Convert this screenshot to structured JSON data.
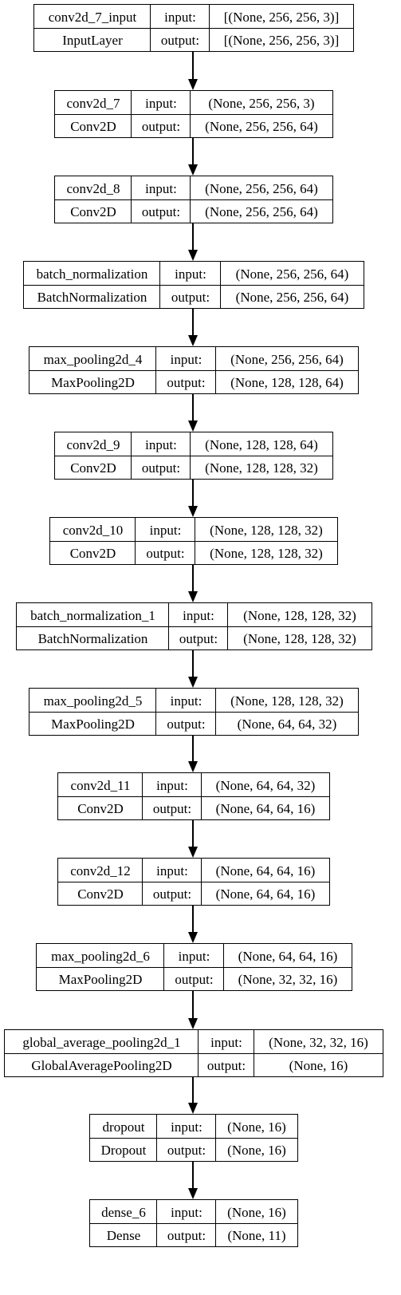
{
  "labels": {
    "input": "input:",
    "output": "output:"
  },
  "layers": [
    {
      "name": "conv2d_7_input",
      "type": "InputLayer",
      "input": "[(None, 256, 256, 3)]",
      "output": "[(None, 256, 256, 3)]"
    },
    {
      "name": "conv2d_7",
      "type": "Conv2D",
      "input": "(None, 256, 256, 3)",
      "output": "(None, 256, 256, 64)"
    },
    {
      "name": "conv2d_8",
      "type": "Conv2D",
      "input": "(None, 256, 256, 64)",
      "output": "(None, 256, 256, 64)"
    },
    {
      "name": "batch_normalization",
      "type": "BatchNormalization",
      "input": "(None, 256, 256, 64)",
      "output": "(None, 256, 256, 64)"
    },
    {
      "name": "max_pooling2d_4",
      "type": "MaxPooling2D",
      "input": "(None, 256, 256, 64)",
      "output": "(None, 128, 128, 64)"
    },
    {
      "name": "conv2d_9",
      "type": "Conv2D",
      "input": "(None, 128, 128, 64)",
      "output": "(None, 128, 128, 32)"
    },
    {
      "name": "conv2d_10",
      "type": "Conv2D",
      "input": "(None, 128, 128, 32)",
      "output": "(None, 128, 128, 32)"
    },
    {
      "name": "batch_normalization_1",
      "type": "BatchNormalization",
      "input": "(None, 128, 128, 32)",
      "output": "(None, 128, 128, 32)"
    },
    {
      "name": "max_pooling2d_5",
      "type": "MaxPooling2D",
      "input": "(None, 128, 128, 32)",
      "output": "(None, 64, 64, 32)"
    },
    {
      "name": "conv2d_11",
      "type": "Conv2D",
      "input": "(None, 64, 64, 32)",
      "output": "(None, 64, 64, 16)"
    },
    {
      "name": "conv2d_12",
      "type": "Conv2D",
      "input": "(None, 64, 64, 16)",
      "output": "(None, 64, 64, 16)"
    },
    {
      "name": "max_pooling2d_6",
      "type": "MaxPooling2D",
      "input": "(None, 64, 64, 16)",
      "output": "(None, 32, 32, 16)"
    },
    {
      "name": "global_average_pooling2d_1",
      "type": "GlobalAveragePooling2D",
      "input": "(None, 32, 32, 16)",
      "output": "(None, 16)"
    },
    {
      "name": "dropout",
      "type": "Dropout",
      "input": "(None, 16)",
      "output": "(None, 16)"
    },
    {
      "name": "dense_6",
      "type": "Dense",
      "input": "(None, 16)",
      "output": "(None, 11)"
    }
  ]
}
